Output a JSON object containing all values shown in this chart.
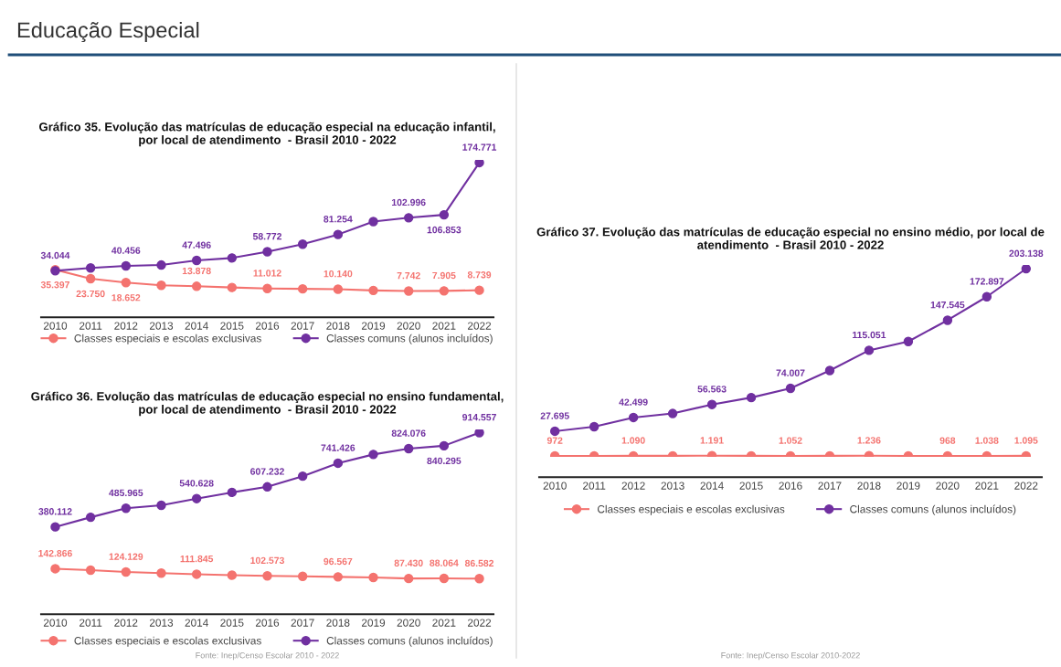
{
  "chart_data": [
    {
      "type": "other",
      "title": "Educação Especial"
    },
    {
      "type": "line",
      "title": "Gráfico 35. Evolução das matrículas de educação especial na educação infantil,\npor local de atendimento  - Brasil 2010 - 2022",
      "categories": [
        "2010",
        "2011",
        "2012",
        "2013",
        "2014",
        "2015",
        "2016",
        "2017",
        "2018",
        "2019",
        "2020",
        "2021",
        "2022"
      ],
      "tick_labels": "x",
      "legend": "bottom",
      "marker": "circle",
      "line_style": "solid",
      "grid": false,
      "series": [
        {
          "name": "Classes especiais e escolas exclusivas",
          "color": "#f4736f",
          "values": [
            35397,
            23750,
            18652,
            15100,
            13878,
            12300,
            11012,
            10500,
            10140,
            8500,
            7742,
            7905,
            8739
          ],
          "value_labels": [
            "35.397",
            "23.750",
            "18.652",
            null,
            "13.878",
            null,
            "11.012",
            null,
            "10.140",
            null,
            "7.742",
            "7.905",
            "8.739"
          ]
        },
        {
          "name": "Classes comuns (alunos incluídos)",
          "color": "#7030a0",
          "values": [
            34044,
            37700,
            40456,
            41500,
            47496,
            50700,
            58772,
            68700,
            81254,
            98000,
            102996,
            106853,
            174771
          ],
          "value_labels": [
            "34.044",
            null,
            "40.456",
            null,
            "47.496",
            null,
            "58.772",
            null,
            "81.254",
            null,
            "102.996",
            "106.853",
            "174.771"
          ]
        }
      ]
    },
    {
      "type": "line",
      "title": "Gráfico 36. Evolução das matrículas de educação especial no ensino fundamental,\npor local de atendimento  - Brasil 2010 - 2022",
      "categories": [
        "2010",
        "2011",
        "2012",
        "2013",
        "2014",
        "2015",
        "2016",
        "2017",
        "2018",
        "2019",
        "2020",
        "2021",
        "2022"
      ],
      "tick_labels": "x",
      "legend": "bottom",
      "marker": "circle",
      "line_style": "solid",
      "grid": false,
      "annotations": [
        "Fonte: Inep/Censo Escolar 2010 - 2022"
      ],
      "series": [
        {
          "name": "Classes especiais e escolas exclusivas",
          "color": "#f4736f",
          "values": [
            142866,
            135000,
            124129,
            118000,
            111845,
            106000,
            102573,
            100000,
            96567,
            93000,
            87430,
            88064,
            86582
          ],
          "value_labels": [
            "142.866",
            null,
            "124.129",
            null,
            "111.845",
            null,
            "102.573",
            null,
            "96.567",
            null,
            "87.430",
            "88.064",
            "86.582"
          ]
        },
        {
          "name": "Classes comuns (alunos incluídos)",
          "color": "#7030a0",
          "values": [
            380112,
            434700,
            485965,
            503000,
            540628,
            575700,
            607232,
            667700,
            741426,
            791000,
            824076,
            840295,
            914557
          ],
          "value_labels": [
            "380.112",
            null,
            "485.965",
            null,
            "540.628",
            null,
            "607.232",
            null,
            "741.426",
            null,
            "824.076",
            "840.295",
            "914.557"
          ]
        }
      ]
    },
    {
      "type": "line",
      "title": "Gráfico 37. Evolução das matrículas de educação especial no ensino médio, por local de\natendimento  - Brasil 2010 - 2022",
      "categories": [
        "2010",
        "2011",
        "2012",
        "2013",
        "2014",
        "2015",
        "2016",
        "2017",
        "2018",
        "2019",
        "2020",
        "2021",
        "2022"
      ],
      "tick_labels": "x",
      "legend": "bottom",
      "marker": "circle",
      "line_style": "solid",
      "grid": false,
      "annotations": [
        "Fonte: Inep/Censo Escolar 2010-2022"
      ],
      "series": [
        {
          "name": "Classes especiais e escolas exclusivas",
          "color": "#f4736f",
          "values": [
            972,
            1000,
            1090,
            1100,
            1191,
            1100,
            1052,
            1100,
            1236,
            1000,
            968,
            1038,
            1095
          ],
          "value_labels": [
            "972",
            null,
            "1.090",
            null,
            "1.191",
            null,
            "1.052",
            null,
            "1.236",
            null,
            "968",
            "1.038",
            "1.095"
          ]
        },
        {
          "name": "Classes comuns (alunos incluídos)",
          "color": "#7030a0",
          "values": [
            27695,
            32600,
            42499,
            46800,
            56563,
            64000,
            74007,
            93200,
            115051,
            124600,
            147545,
            172897,
            203138
          ],
          "value_labels": [
            "27.695",
            null,
            "42.499",
            null,
            "56.563",
            null,
            "74.007",
            null,
            "115.051",
            null,
            "147.545",
            "172.897",
            "203.138"
          ]
        }
      ]
    }
  ]
}
